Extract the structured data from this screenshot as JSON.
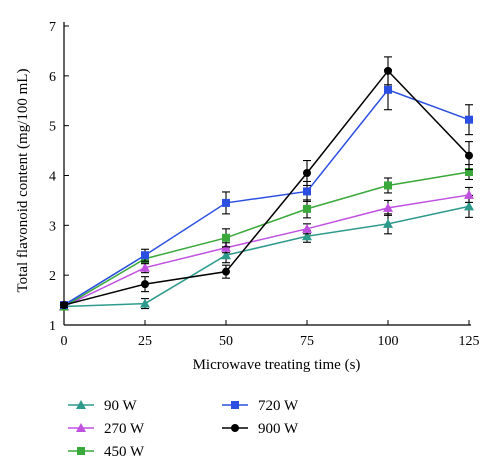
{
  "chart_data": {
    "type": "line",
    "xlabel": "Microwave treating time (s)",
    "ylabel": "Total flavonoid content (mg/100 mL)",
    "x": [
      0,
      25,
      50,
      75,
      100,
      125
    ],
    "xticks": [
      "0",
      "25",
      "50",
      "75",
      "100",
      "125"
    ],
    "yticks": [
      "1",
      "2",
      "3",
      "4",
      "5",
      "6",
      "7"
    ],
    "xlim": [
      0,
      125
    ],
    "ylim": [
      1,
      7
    ],
    "grid": false,
    "legend_position": "bottom",
    "series": [
      {
        "name": "90 W",
        "color": "#2e9a8c",
        "marker": "triangle",
        "values": [
          1.37,
          1.43,
          2.4,
          2.78,
          3.03,
          3.38
        ],
        "errors": [
          0.05,
          0.1,
          0.15,
          0.12,
          0.2,
          0.22
        ]
      },
      {
        "name": "270 W",
        "color": "#c050e0",
        "marker": "triangle",
        "values": [
          1.37,
          2.15,
          2.55,
          2.93,
          3.35,
          3.61
        ],
        "errors": [
          0.05,
          0.1,
          0.1,
          0.1,
          0.15,
          0.15
        ]
      },
      {
        "name": "450 W",
        "color": "#3aa83a",
        "marker": "square",
        "values": [
          1.37,
          2.33,
          2.75,
          3.33,
          3.8,
          4.07
        ],
        "errors": [
          0.05,
          0.1,
          0.18,
          0.18,
          0.15,
          0.15
        ]
      },
      {
        "name": "720 W",
        "color": "#2b4fe0",
        "marker": "square",
        "values": [
          1.4,
          2.4,
          3.45,
          3.68,
          5.72,
          5.12
        ],
        "errors": [
          0.05,
          0.12,
          0.22,
          0.2,
          0.4,
          0.3
        ]
      },
      {
        "name": "900 W",
        "color": "#000000",
        "marker": "circle",
        "values": [
          1.4,
          1.82,
          2.07,
          4.05,
          6.1,
          4.4
        ],
        "errors": [
          0.05,
          0.15,
          0.13,
          0.25,
          0.28,
          0.28
        ]
      }
    ]
  }
}
